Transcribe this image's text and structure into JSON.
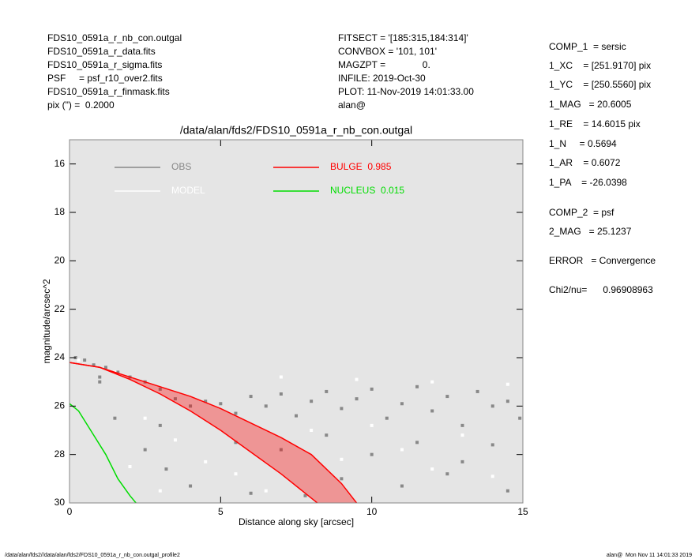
{
  "header": {
    "left": [
      "FDS10_0591a_r_nb_con.outgal",
      "FDS10_0591a_r_data.fits",
      "FDS10_0591a_r_sigma.fits",
      "PSF     = psf_r10_over2.fits",
      "FDS10_0591a_r_finmask.fits",
      "pix (\") =  0.2000"
    ],
    "middle": [
      "FITSECT = '[185:315,184:314]'",
      "CONVBOX = '101, 101'",
      "MAGZPT =              0.",
      "INFILE: 2019-Oct-30",
      "PLOT: 11-Nov-2019 14:01:33.00",
      "alan@"
    ],
    "right": [
      "COMP_1  = sersic",
      "1_XC    = [251.9170] pix",
      "1_YC    = [250.5560] pix",
      "1_MAG   = 20.6005",
      "1_RE    = 14.6015 pix",
      "1_N     = 0.5694",
      "1_AR    = 0.6072",
      "1_PA    = -26.0398",
      "COMP_2  = psf",
      "2_MAG   = 25.1237",
      "ERROR   = Convergence",
      "Chi2/nu=      0.96908963"
    ]
  },
  "chart_data": {
    "type": "scatter",
    "title": "/data/alan/fds2/FDS10_0591a_r_nb_con.outgal",
    "x_label": "Distance along sky [arcsec]",
    "y_label": "magnitude/arcsec^2",
    "xlim": [
      0,
      15
    ],
    "xticks": [
      0,
      5,
      10,
      15
    ],
    "ylim": [
      30,
      15
    ],
    "yticks": [
      16,
      18,
      20,
      22,
      24,
      26,
      28,
      30
    ],
    "background": "#e5e5e5",
    "series": [
      {
        "name": "OBS",
        "color": "#888888",
        "mode": "points",
        "x": [
          0.2,
          0.5,
          0.8,
          1.2,
          1.6,
          2.0,
          2.5,
          3.0,
          3.5,
          4.0,
          4.5,
          5.0,
          5.5,
          6.0,
          6.5,
          7.0,
          7.5,
          8.0,
          8.5,
          9.0,
          9.5,
          10.0,
          10.5,
          11.0,
          11.5,
          12.0,
          12.5,
          13.0,
          13.5,
          14.0,
          14.5,
          14.9,
          5.5,
          7,
          8.5,
          10,
          11.5,
          13,
          14,
          9,
          11,
          12.5,
          14.5,
          1.0,
          1.5,
          2.5,
          3.2,
          4,
          6,
          7.8,
          1,
          3
        ],
        "values": [
          24.0,
          24.1,
          24.3,
          24.4,
          24.6,
          24.8,
          25.0,
          25.3,
          25.7,
          26.0,
          25.8,
          25.9,
          26.3,
          25.6,
          26.0,
          25.5,
          26.4,
          25.8,
          25.4,
          26.1,
          25.7,
          25.3,
          26.5,
          25.9,
          25.2,
          26.2,
          25.6,
          26.8,
          25.4,
          26.0,
          25.8,
          26.5,
          27.5,
          27.8,
          27.2,
          28.0,
          27.5,
          28.3,
          27.6,
          29.0,
          29.3,
          28.8,
          29.5,
          25.0,
          26.5,
          27.8,
          28.6,
          29.3,
          29.6,
          29.7,
          24.8,
          26.8
        ]
      },
      {
        "name": "MODEL",
        "color": "#ffffff",
        "mode": "points",
        "x": [
          0.3,
          1.5,
          2.5,
          3.5,
          4.5,
          5.5,
          6.5,
          8,
          9,
          10,
          11,
          12,
          13,
          14,
          2,
          3,
          9.5,
          12,
          7,
          14.5
        ],
        "values": [
          24.1,
          24.6,
          26.5,
          27.4,
          28.3,
          28.8,
          29.5,
          27.0,
          28.2,
          26.8,
          27.8,
          28.6,
          27.2,
          28.9,
          28.5,
          29.5,
          24.9,
          25.0,
          24.8,
          25.1
        ]
      },
      {
        "name": "BULGE  0.985",
        "color": "#ff0000",
        "mode": "band",
        "x": [
          0,
          1,
          2,
          3,
          4,
          5,
          6,
          7,
          8.2
        ],
        "values": [
          24.2,
          24.4,
          24.9,
          25.5,
          26.2,
          27.0,
          27.9,
          28.8,
          30
        ],
        "x2": [
          0,
          1,
          2,
          3,
          4,
          5,
          6,
          7,
          8,
          9,
          9.5
        ],
        "values2": [
          24.2,
          24.4,
          24.8,
          25.2,
          25.6,
          26.1,
          26.7,
          27.3,
          28.0,
          29.2,
          30
        ]
      },
      {
        "name": "NUCLEUS  0.015",
        "color": "#00dd00",
        "mode": "line",
        "x": [
          0,
          0.3,
          0.7,
          1.2,
          1.6,
          2.0,
          2.2
        ],
        "values": [
          25.9,
          26.2,
          27.0,
          28.0,
          29.0,
          29.7,
          30
        ]
      }
    ]
  },
  "footer": {
    "left": "/data/alan/fds2//data/alan/fds2/FDS10_0591a_r_nb_con.outgal_profile2",
    "right": "alan@  Mon Nov 11 14:01:33 2019"
  }
}
